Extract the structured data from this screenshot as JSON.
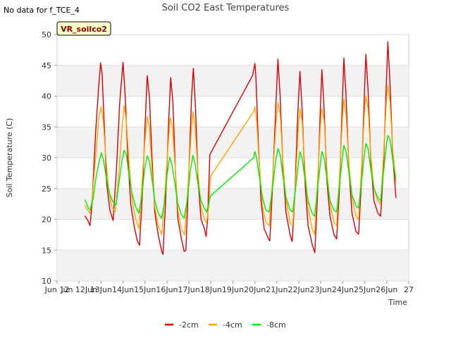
{
  "header": {
    "no_data_note": "No data for f_TCE_4",
    "badge": "VR_soilco2"
  },
  "chart_data": {
    "type": "line",
    "title": "Soil CO2 East Temperatures",
    "xlabel": "Time",
    "ylabel": "Soil Temperature (C)",
    "xlim": [
      11.0,
      27.0
    ],
    "ylim": [
      10,
      50
    ],
    "x_ticks": [
      11,
      12,
      13,
      14,
      15,
      16,
      17,
      18,
      19,
      20,
      21,
      22,
      23,
      24,
      25,
      26,
      27
    ],
    "x_tick_labels": [
      "Jun 12",
      "Jun 12Jun",
      "13Jun",
      "14Jun",
      "15Jun",
      "16Jun",
      "17Jun",
      "18Jun",
      "19Jun",
      "20Jun",
      "21Jun",
      "22Jun",
      "23Jun",
      "24Jun",
      "25Jun",
      "26Jun",
      "27"
    ],
    "y_ticks": [
      10,
      15,
      20,
      25,
      30,
      35,
      40,
      45,
      50
    ],
    "grid": true,
    "legend_position": "bottom-center",
    "series": [
      {
        "name": "-2cm",
        "color": "#dd0000",
        "points": [
          [
            12.26,
            20.6
          ],
          [
            12.4,
            19.8
          ],
          [
            12.5,
            19.0
          ],
          [
            12.6,
            23.0
          ],
          [
            12.75,
            34.0
          ],
          [
            12.9,
            42.0
          ],
          [
            12.98,
            45.4
          ],
          [
            13.05,
            43.5
          ],
          [
            13.15,
            35.0
          ],
          [
            13.25,
            26.0
          ],
          [
            13.4,
            21.5
          ],
          [
            13.55,
            19.8
          ],
          [
            13.7,
            28.0
          ],
          [
            13.85,
            39.0
          ],
          [
            14.0,
            45.5
          ],
          [
            14.1,
            40.0
          ],
          [
            14.22,
            30.0
          ],
          [
            14.35,
            22.5
          ],
          [
            14.5,
            19.0
          ],
          [
            14.65,
            16.5
          ],
          [
            14.75,
            15.8
          ],
          [
            14.88,
            24.0
          ],
          [
            15.0,
            35.0
          ],
          [
            15.1,
            43.3
          ],
          [
            15.2,
            40.0
          ],
          [
            15.32,
            30.0
          ],
          [
            15.45,
            21.0
          ],
          [
            15.6,
            17.5
          ],
          [
            15.75,
            15.0
          ],
          [
            15.82,
            14.3
          ],
          [
            15.95,
            24.0
          ],
          [
            16.08,
            36.0
          ],
          [
            16.17,
            43.0
          ],
          [
            16.27,
            39.0
          ],
          [
            16.38,
            28.0
          ],
          [
            16.5,
            20.0
          ],
          [
            16.65,
            17.0
          ],
          [
            16.78,
            14.8
          ],
          [
            16.86,
            15.0
          ],
          [
            16.98,
            26.0
          ],
          [
            17.12,
            40.0
          ],
          [
            17.2,
            44.5
          ],
          [
            17.3,
            38.0
          ],
          [
            17.42,
            26.0
          ],
          [
            17.55,
            20.0
          ],
          [
            17.7,
            18.5
          ],
          [
            17.78,
            17.2
          ],
          [
            17.85,
            20.0
          ],
          [
            17.95,
            30.5
          ],
          [
            19.9,
            43.4
          ],
          [
            20.0,
            45.3
          ],
          [
            20.05,
            43.0
          ],
          [
            20.15,
            33.0
          ],
          [
            20.28,
            23.0
          ],
          [
            20.42,
            18.5
          ],
          [
            20.6,
            17.0
          ],
          [
            20.68,
            16.5
          ],
          [
            20.8,
            25.0
          ],
          [
            20.95,
            38.0
          ],
          [
            21.05,
            46.0
          ],
          [
            21.15,
            40.0
          ],
          [
            21.28,
            28.0
          ],
          [
            21.42,
            21.0
          ],
          [
            21.6,
            17.5
          ],
          [
            21.7,
            16.4
          ],
          [
            21.82,
            24.0
          ],
          [
            21.95,
            37.0
          ],
          [
            22.05,
            44.0
          ],
          [
            22.15,
            38.0
          ],
          [
            22.28,
            26.0
          ],
          [
            22.42,
            19.0
          ],
          [
            22.6,
            16.0
          ],
          [
            22.73,
            14.6
          ],
          [
            22.85,
            24.0
          ],
          [
            22.98,
            38.0
          ],
          [
            23.05,
            44.3
          ],
          [
            23.15,
            38.0
          ],
          [
            23.28,
            26.0
          ],
          [
            23.42,
            20.5
          ],
          [
            23.6,
            17.5
          ],
          [
            23.72,
            16.8
          ],
          [
            23.85,
            25.0
          ],
          [
            23.98,
            39.0
          ],
          [
            24.05,
            46.2
          ],
          [
            24.15,
            40.0
          ],
          [
            24.28,
            28.0
          ],
          [
            24.42,
            21.0
          ],
          [
            24.6,
            18.0
          ],
          [
            24.72,
            17.6
          ],
          [
            24.85,
            26.0
          ],
          [
            24.98,
            40.0
          ],
          [
            25.05,
            46.8
          ],
          [
            25.15,
            41.0
          ],
          [
            25.28,
            29.0
          ],
          [
            25.42,
            23.0
          ],
          [
            25.6,
            21.0
          ],
          [
            25.72,
            20.5
          ],
          [
            25.85,
            28.0
          ],
          [
            25.98,
            42.0
          ],
          [
            26.05,
            48.8
          ],
          [
            26.15,
            42.0
          ],
          [
            26.28,
            30.0
          ],
          [
            26.42,
            23.5
          ]
        ]
      },
      {
        "name": "-4cm",
        "color": "#ffa500",
        "points": [
          [
            12.26,
            22.3
          ],
          [
            12.4,
            21.5
          ],
          [
            12.5,
            21.0
          ],
          [
            12.6,
            23.5
          ],
          [
            12.75,
            30.0
          ],
          [
            12.9,
            36.5
          ],
          [
            13.0,
            38.3
          ],
          [
            13.1,
            36.0
          ],
          [
            13.22,
            30.0
          ],
          [
            13.35,
            24.5
          ],
          [
            13.5,
            22.0
          ],
          [
            13.65,
            21.2
          ],
          [
            13.8,
            27.0
          ],
          [
            13.95,
            34.5
          ],
          [
            14.05,
            38.5
          ],
          [
            14.15,
            36.0
          ],
          [
            14.28,
            29.0
          ],
          [
            14.42,
            23.0
          ],
          [
            14.58,
            20.0
          ],
          [
            14.72,
            18.5
          ],
          [
            14.85,
            25.0
          ],
          [
            14.98,
            32.0
          ],
          [
            15.1,
            36.7
          ],
          [
            15.2,
            35.0
          ],
          [
            15.32,
            28.0
          ],
          [
            15.45,
            22.0
          ],
          [
            15.6,
            19.0
          ],
          [
            15.76,
            17.5
          ],
          [
            15.9,
            24.0
          ],
          [
            16.05,
            32.0
          ],
          [
            16.15,
            36.5
          ],
          [
            16.25,
            35.0
          ],
          [
            16.38,
            28.0
          ],
          [
            16.5,
            21.5
          ],
          [
            16.65,
            18.5
          ],
          [
            16.8,
            17.5
          ],
          [
            16.95,
            25.0
          ],
          [
            17.08,
            33.0
          ],
          [
            17.18,
            37.5
          ],
          [
            17.28,
            35.0
          ],
          [
            17.4,
            28.0
          ],
          [
            17.55,
            22.0
          ],
          [
            17.7,
            20.0
          ],
          [
            17.8,
            19.5
          ],
          [
            17.9,
            22.0
          ],
          [
            17.98,
            27.0
          ],
          [
            19.95,
            37.5
          ],
          [
            20.0,
            38.3
          ],
          [
            20.08,
            36.0
          ],
          [
            20.2,
            29.0
          ],
          [
            20.35,
            22.0
          ],
          [
            20.5,
            19.5
          ],
          [
            20.65,
            19.0
          ],
          [
            20.8,
            26.0
          ],
          [
            20.95,
            35.0
          ],
          [
            21.05,
            38.9
          ],
          [
            21.15,
            37.0
          ],
          [
            21.28,
            29.0
          ],
          [
            21.42,
            23.0
          ],
          [
            21.6,
            19.5
          ],
          [
            21.72,
            19.0
          ],
          [
            21.85,
            26.0
          ],
          [
            21.98,
            35.0
          ],
          [
            22.05,
            38.0
          ],
          [
            22.15,
            36.0
          ],
          [
            22.28,
            28.0
          ],
          [
            22.42,
            22.0
          ],
          [
            22.6,
            18.5
          ],
          [
            22.72,
            17.5
          ],
          [
            22.85,
            26.0
          ],
          [
            22.98,
            35.0
          ],
          [
            23.05,
            38.0
          ],
          [
            23.15,
            36.0
          ],
          [
            23.28,
            28.0
          ],
          [
            23.42,
            22.5
          ],
          [
            23.6,
            19.5
          ],
          [
            23.72,
            19.0
          ],
          [
            23.85,
            27.0
          ],
          [
            23.98,
            36.0
          ],
          [
            24.05,
            39.5
          ],
          [
            24.15,
            37.0
          ],
          [
            24.28,
            29.0
          ],
          [
            24.42,
            23.5
          ],
          [
            24.6,
            20.5
          ],
          [
            24.72,
            20.0
          ],
          [
            24.85,
            28.0
          ],
          [
            24.98,
            37.0
          ],
          [
            25.05,
            40.0
          ],
          [
            25.15,
            38.0
          ],
          [
            25.28,
            30.0
          ],
          [
            25.42,
            25.0
          ],
          [
            25.6,
            23.0
          ],
          [
            25.72,
            22.5
          ],
          [
            25.85,
            30.0
          ],
          [
            25.98,
            39.0
          ],
          [
            26.05,
            41.8
          ],
          [
            26.15,
            39.0
          ],
          [
            26.28,
            31.0
          ],
          [
            26.42,
            26.0
          ]
        ]
      },
      {
        "name": "-8cm",
        "color": "#00ee00",
        "points": [
          [
            12.26,
            23.2
          ],
          [
            12.4,
            22.0
          ],
          [
            12.5,
            21.5
          ],
          [
            12.62,
            23.0
          ],
          [
            12.78,
            27.0
          ],
          [
            12.92,
            29.5
          ],
          [
            13.02,
            30.8
          ],
          [
            13.12,
            29.5
          ],
          [
            13.25,
            26.5
          ],
          [
            13.4,
            24.0
          ],
          [
            13.55,
            22.8
          ],
          [
            13.68,
            22.3
          ],
          [
            13.82,
            26.0
          ],
          [
            13.95,
            29.5
          ],
          [
            14.05,
            31.2
          ],
          [
            14.15,
            30.5
          ],
          [
            14.28,
            27.0
          ],
          [
            14.42,
            24.0
          ],
          [
            14.58,
            22.0
          ],
          [
            14.72,
            21.0
          ],
          [
            14.85,
            23.5
          ],
          [
            14.98,
            28.0
          ],
          [
            15.1,
            30.3
          ],
          [
            15.2,
            29.5
          ],
          [
            15.32,
            26.5
          ],
          [
            15.45,
            23.0
          ],
          [
            15.6,
            21.0
          ],
          [
            15.75,
            20.2
          ],
          [
            15.88,
            22.5
          ],
          [
            16.0,
            27.0
          ],
          [
            16.12,
            30.1
          ],
          [
            16.22,
            29.0
          ],
          [
            16.35,
            26.0
          ],
          [
            16.5,
            22.5
          ],
          [
            16.65,
            20.8
          ],
          [
            16.78,
            20.2
          ],
          [
            16.92,
            23.0
          ],
          [
            17.05,
            27.5
          ],
          [
            17.18,
            30.4
          ],
          [
            17.28,
            29.0
          ],
          [
            17.4,
            26.0
          ],
          [
            17.55,
            23.0
          ],
          [
            17.7,
            21.8
          ],
          [
            17.8,
            21.2
          ],
          [
            17.9,
            22.5
          ],
          [
            17.98,
            23.8
          ],
          [
            19.95,
            30.0
          ],
          [
            20.0,
            31.0
          ],
          [
            20.08,
            30.0
          ],
          [
            20.2,
            27.0
          ],
          [
            20.35,
            23.5
          ],
          [
            20.5,
            21.5
          ],
          [
            20.65,
            21.2
          ],
          [
            20.8,
            25.0
          ],
          [
            20.95,
            29.5
          ],
          [
            21.05,
            31.5
          ],
          [
            21.15,
            30.5
          ],
          [
            21.28,
            27.0
          ],
          [
            21.42,
            23.5
          ],
          [
            21.6,
            21.5
          ],
          [
            21.72,
            21.2
          ],
          [
            21.85,
            25.0
          ],
          [
            21.98,
            29.0
          ],
          [
            22.05,
            31.0
          ],
          [
            22.15,
            30.0
          ],
          [
            22.28,
            26.5
          ],
          [
            22.42,
            23.0
          ],
          [
            22.6,
            21.0
          ],
          [
            22.72,
            20.5
          ],
          [
            22.85,
            25.0
          ],
          [
            22.98,
            29.0
          ],
          [
            23.05,
            31.0
          ],
          [
            23.15,
            30.0
          ],
          [
            23.28,
            26.5
          ],
          [
            23.42,
            23.0
          ],
          [
            23.6,
            21.5
          ],
          [
            23.72,
            21.2
          ],
          [
            23.85,
            25.5
          ],
          [
            23.98,
            30.0
          ],
          [
            24.05,
            32.0
          ],
          [
            24.15,
            31.0
          ],
          [
            24.28,
            27.5
          ],
          [
            24.42,
            24.0
          ],
          [
            24.6,
            22.2
          ],
          [
            24.72,
            21.8
          ],
          [
            24.85,
            26.0
          ],
          [
            24.98,
            30.5
          ],
          [
            25.05,
            32.3
          ],
          [
            25.15,
            31.5
          ],
          [
            25.28,
            28.0
          ],
          [
            25.42,
            25.0
          ],
          [
            25.6,
            23.5
          ],
          [
            25.72,
            23.0
          ],
          [
            25.85,
            27.5
          ],
          [
            25.98,
            32.0
          ],
          [
            26.05,
            33.6
          ],
          [
            26.15,
            33.0
          ],
          [
            26.28,
            29.5
          ],
          [
            26.42,
            26.5
          ]
        ]
      }
    ]
  }
}
